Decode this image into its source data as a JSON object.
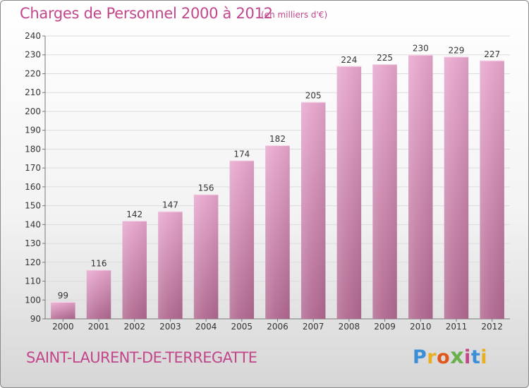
{
  "header": {
    "title": "Charges de Personnel 2000 à 2012",
    "subtitle": "(en milliers d'€)"
  },
  "footer": {
    "commune": "SAINT-LAURENT-DE-TERREGATTE",
    "logo_text": "Proxiti"
  },
  "colors": {
    "accent": "#c2468a",
    "bar_top": "#e6a6cc",
    "bar_bottom": "#b0688f"
  },
  "chart_data": {
    "type": "bar",
    "categories": [
      "2000",
      "2001",
      "2002",
      "2003",
      "2004",
      "2005",
      "2006",
      "2007",
      "2008",
      "2009",
      "2010",
      "2011",
      "2012"
    ],
    "values": [
      99,
      116,
      142,
      147,
      156,
      174,
      182,
      205,
      224,
      225,
      230,
      229,
      227
    ],
    "data_labels": [
      "99",
      "116",
      "142",
      "147",
      "156",
      "174",
      "182",
      "205",
      "224",
      "225",
      "230",
      "229",
      "227"
    ],
    "title": "Charges de Personnel 2000 à 2012",
    "ylim": [
      90,
      240
    ],
    "yticks": [
      90,
      100,
      110,
      120,
      130,
      140,
      150,
      160,
      170,
      180,
      190,
      200,
      210,
      220,
      230,
      240
    ],
    "grid": true,
    "legend": "none"
  }
}
